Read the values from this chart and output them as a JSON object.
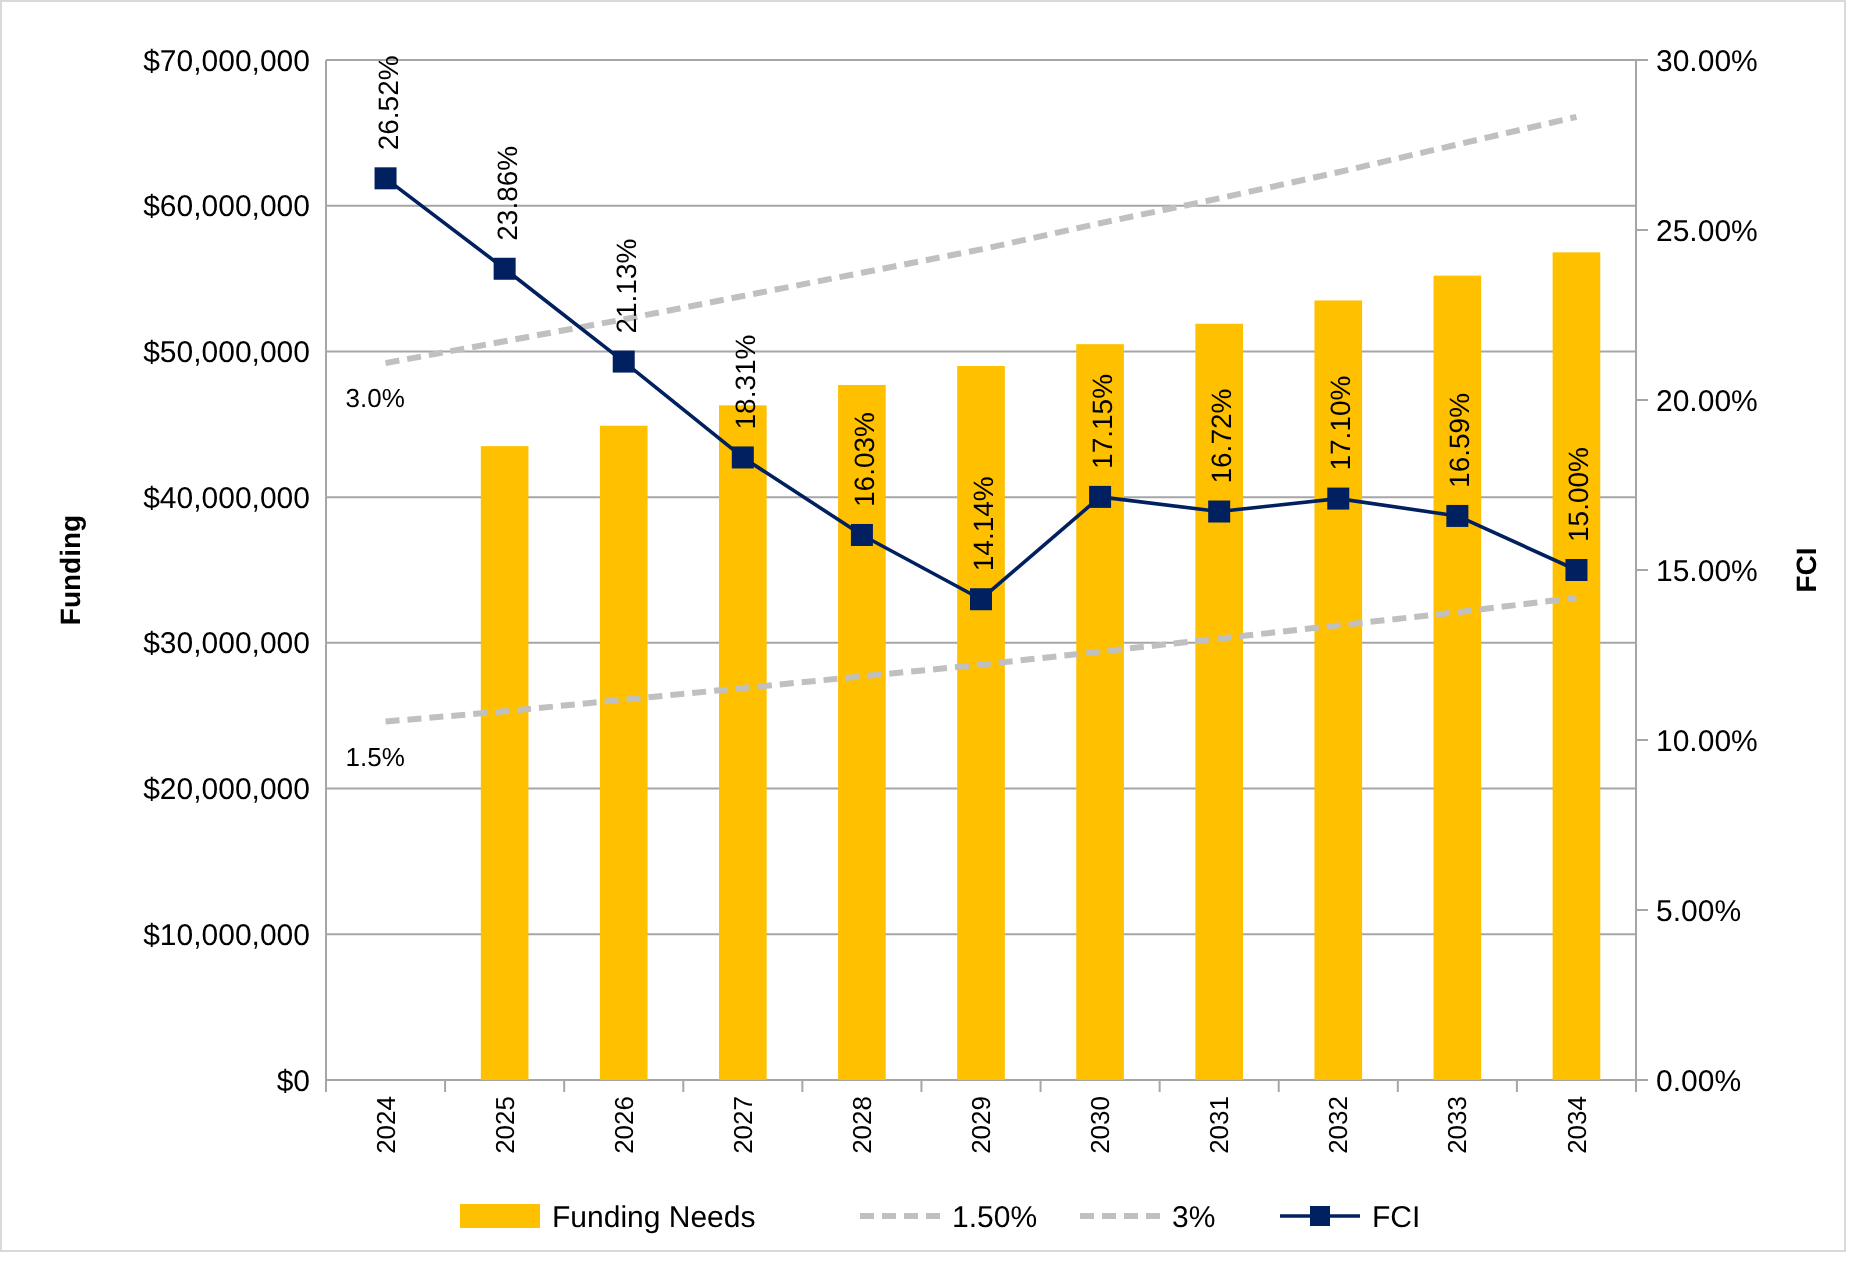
{
  "chart_data": {
    "type": "bar",
    "xlabel": null,
    "ylabel": "Funding",
    "y2label": "FCI",
    "categories": [
      "2024",
      "2025",
      "2026",
      "2027",
      "2028",
      "2029",
      "2030",
      "2031",
      "2032",
      "2033",
      "2034"
    ],
    "series": [
      {
        "name": "Funding Needs",
        "color": "#ffc000",
        "values": [
          null,
          43500000,
          44900000,
          46300000,
          47700000,
          49000000,
          50500000,
          51900000,
          53500000,
          55200000,
          56800000
        ]
      },
      {
        "name": "1.50%",
        "type": "line",
        "line_style": "dashed",
        "marker": "none",
        "color": "#c0c0c0",
        "values": [
          24600000,
          25300000,
          26100000,
          26900000,
          27700000,
          28500000,
          29400000,
          30300000,
          31200000,
          32100000,
          33100000
        ]
      },
      {
        "name": "3%",
        "type": "line",
        "line_style": "dashed",
        "marker": "none",
        "color": "#c0c0c0",
        "values": [
          49200000,
          50700000,
          52200000,
          53800000,
          55400000,
          57000000,
          58800000,
          60500000,
          62300000,
          64200000,
          66100000
        ]
      },
      {
        "name": "FCI",
        "type": "line",
        "axis": "y2",
        "line_style": "solid",
        "marker": "square",
        "color": "#002060",
        "values": [
          26.52,
          23.86,
          21.13,
          18.31,
          16.03,
          14.14,
          17.15,
          16.72,
          17.1,
          16.59,
          15.0
        ],
        "value_labels": [
          "26.52%",
          "23.86%",
          "21.13%",
          "18.31%",
          "16.03%",
          "14.14%",
          "17.15%",
          "16.72%",
          "17.10%",
          "16.59%",
          "15.00%"
        ]
      }
    ],
    "ylim": [
      0,
      70000000
    ],
    "yticks": [
      {
        "value": 0,
        "label": "$0"
      },
      {
        "value": 10000000,
        "label": "$10,000,000"
      },
      {
        "value": 20000000,
        "label": "$20,000,000"
      },
      {
        "value": 30000000,
        "label": "$30,000,000"
      },
      {
        "value": 40000000,
        "label": "$40,000,000"
      },
      {
        "value": 50000000,
        "label": "$50,000,000"
      },
      {
        "value": 60000000,
        "label": "$60,000,000"
      },
      {
        "value": 70000000,
        "label": "$70,000,000"
      }
    ],
    "y2lim": [
      0,
      30
    ],
    "y2ticks": [
      {
        "value": 0,
        "label": "0.00%"
      },
      {
        "value": 5,
        "label": "5.00%"
      },
      {
        "value": 10,
        "label": "10.00%"
      },
      {
        "value": 15,
        "label": "15.00%"
      },
      {
        "value": 20,
        "label": "20.00%"
      },
      {
        "value": 25,
        "label": "25.00%"
      },
      {
        "value": 30,
        "label": "30.00%"
      }
    ],
    "annotations": [
      {
        "text": "3.0%",
        "x": "2024",
        "y": 49200000
      },
      {
        "text": "1.5%",
        "x": "2024",
        "y": 24600000
      }
    ],
    "grid": "y",
    "legend": "bottom"
  }
}
